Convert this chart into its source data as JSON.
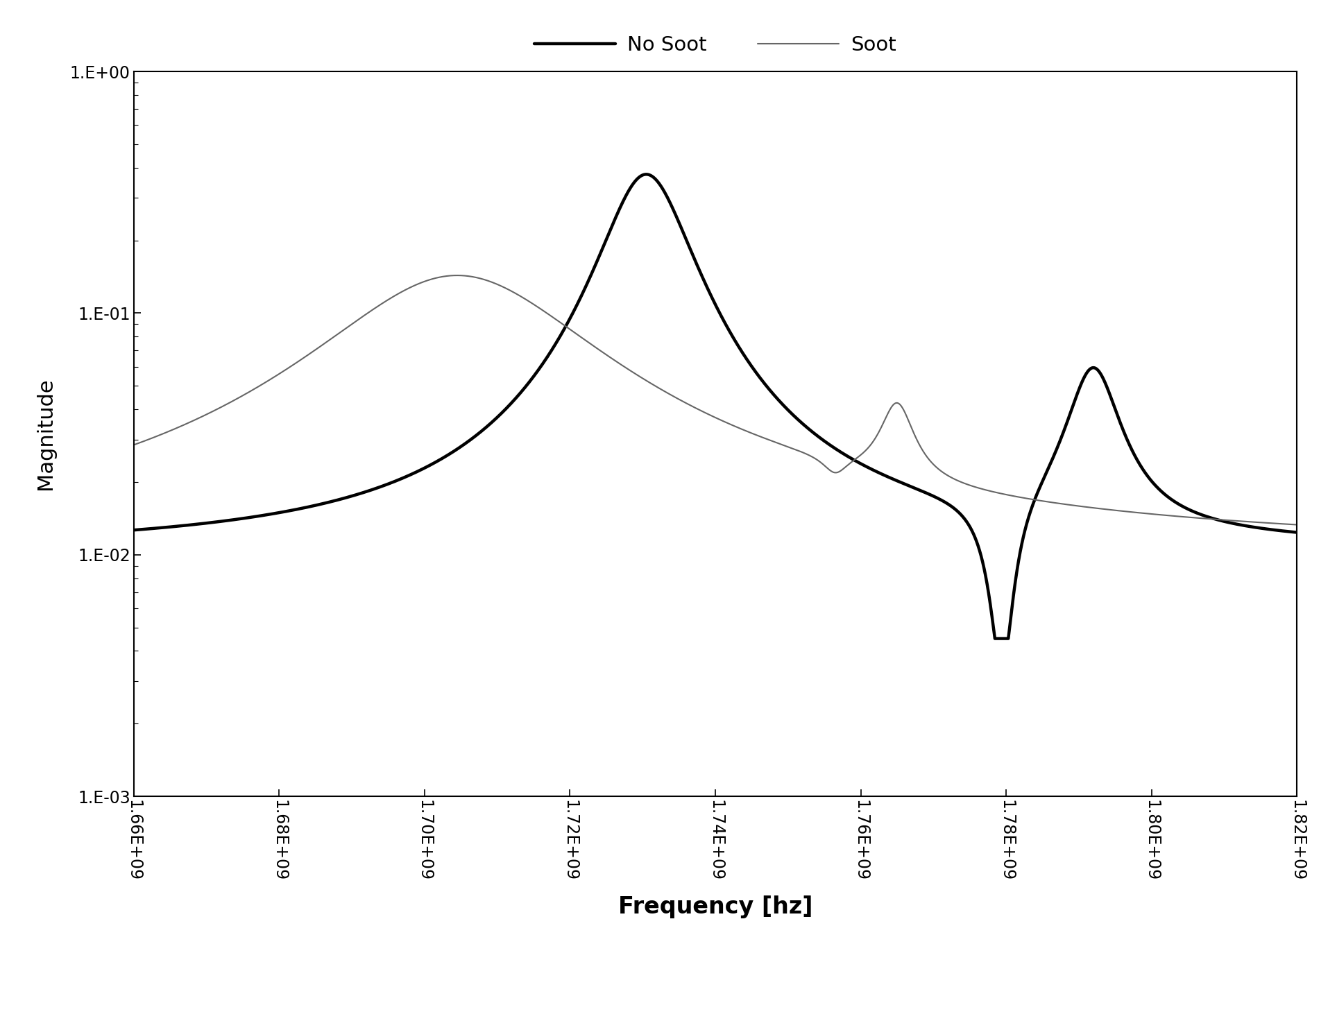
{
  "title": "",
  "xlabel": "Frequency [hz]",
  "ylabel": "Magnitude",
  "legend_labels": [
    "No Soot",
    "Soot"
  ],
  "no_soot_color": "#000000",
  "soot_color": "#666666",
  "no_soot_linewidth": 3.2,
  "soot_linewidth": 1.5,
  "xmin": 1660000000.0,
  "xmax": 1820000000.0,
  "ymin": 0.001,
  "ymax": 1.0,
  "xticks": [
    1660000000.0,
    1680000000.0,
    1700000000.0,
    1720000000.0,
    1740000000.0,
    1760000000.0,
    1780000000.0,
    1800000000.0,
    1820000000.0
  ],
  "yticks": [
    0.001,
    0.01,
    0.1,
    1.0
  ],
  "background_color": "#ffffff"
}
